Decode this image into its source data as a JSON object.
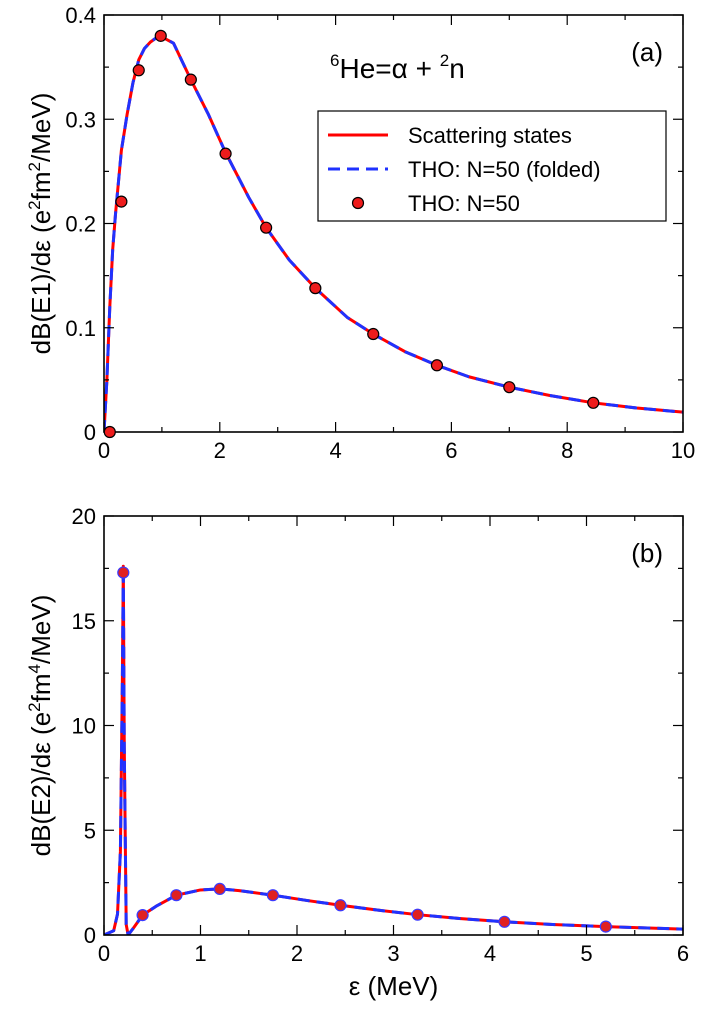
{
  "colors": {
    "scattering": "#ff0000",
    "folded": "#1f32ff",
    "marker_fill": "#ee1c1c",
    "marker_fill_b": "#e02020",
    "marker_edge": "#3a3aff"
  },
  "chart_data": [
    {
      "type": "line",
      "panel_label": "(a)",
      "annotation": {
        "sup1": "6",
        "base1": "He=α + ",
        "sup2": "2",
        "base2": "n"
      },
      "ylabel_parts": {
        "pre": "dB(E1)/dε (e",
        "sup1": "2",
        "mid": "fm",
        "sup2": "2",
        "post": "/MeV)"
      },
      "xlim": [
        0,
        10
      ],
      "ylim": [
        0,
        0.4
      ],
      "xticks": [
        0,
        2,
        4,
        6,
        8,
        10
      ],
      "yticks": [
        0,
        0.1,
        0.2,
        0.3,
        0.4
      ],
      "ytick_labels": [
        "0",
        "0.1",
        "0.2",
        "0.3",
        "0.4"
      ],
      "legend": {
        "position": "top-right",
        "entries": [
          "Scattering states",
          "THO: N=50 (folded)",
          "THO: N=50"
        ]
      },
      "series": [
        {
          "name": "Scattering states",
          "style": "solid",
          "x": [
            0.0,
            0.05,
            0.1,
            0.15,
            0.2,
            0.3,
            0.4,
            0.5,
            0.6,
            0.7,
            0.8,
            0.9,
            1.0,
            1.2,
            1.5,
            1.8,
            2.1,
            2.5,
            2.8,
            3.2,
            3.65,
            4.2,
            4.65,
            5.2,
            5.75,
            6.3,
            7.0,
            7.7,
            8.45,
            9.2,
            10.0
          ],
          "y": [
            0.0,
            0.05,
            0.12,
            0.175,
            0.21,
            0.27,
            0.305,
            0.335,
            0.357,
            0.368,
            0.374,
            0.378,
            0.379,
            0.373,
            0.338,
            0.305,
            0.268,
            0.225,
            0.196,
            0.165,
            0.138,
            0.11,
            0.094,
            0.077,
            0.064,
            0.053,
            0.043,
            0.035,
            0.028,
            0.023,
            0.019
          ]
        },
        {
          "name": "THO: N=50 (folded)",
          "style": "dashed",
          "x": [
            0.0,
            0.05,
            0.1,
            0.15,
            0.2,
            0.3,
            0.4,
            0.5,
            0.6,
            0.7,
            0.8,
            0.9,
            1.0,
            1.2,
            1.5,
            1.8,
            2.1,
            2.5,
            2.8,
            3.2,
            3.65,
            4.2,
            4.65,
            5.2,
            5.75,
            6.3,
            7.0,
            7.7,
            8.45,
            9.2,
            10.0
          ],
          "y": [
            0.0,
            0.05,
            0.12,
            0.175,
            0.21,
            0.27,
            0.305,
            0.335,
            0.357,
            0.368,
            0.374,
            0.378,
            0.379,
            0.373,
            0.338,
            0.305,
            0.268,
            0.225,
            0.196,
            0.165,
            0.138,
            0.11,
            0.094,
            0.077,
            0.064,
            0.053,
            0.043,
            0.035,
            0.028,
            0.023,
            0.019
          ]
        },
        {
          "name": "THO: N=50",
          "style": "markers",
          "x": [
            0.1,
            0.3,
            0.6,
            0.98,
            1.5,
            2.1,
            2.8,
            3.65,
            4.65,
            5.75,
            7.0,
            8.45
          ],
          "y": [
            0.0,
            0.221,
            0.347,
            0.38,
            0.338,
            0.267,
            0.196,
            0.138,
            0.094,
            0.064,
            0.043,
            0.028
          ]
        }
      ]
    },
    {
      "type": "line",
      "panel_label": "(b)",
      "ylabel_parts": {
        "pre": "dB(E2)/dε (e",
        "sup1": "2",
        "mid": "fm",
        "sup2": "4",
        "post": "/MeV)"
      },
      "xlabel": "ε (MeV)",
      "xlim": [
        0,
        6
      ],
      "ylim": [
        0,
        20
      ],
      "xticks": [
        0,
        1,
        2,
        3,
        4,
        5,
        6
      ],
      "yticks": [
        0,
        5,
        10,
        15,
        20
      ],
      "ytick_labels": [
        "0",
        "5",
        "10",
        "15",
        "20"
      ],
      "series": [
        {
          "name": "Scattering states",
          "style": "solid",
          "x": [
            0.0,
            0.1,
            0.14,
            0.17,
            0.19,
            0.2,
            0.21,
            0.23,
            0.25,
            0.3,
            0.4,
            0.55,
            0.75,
            1.0,
            1.2,
            1.4,
            1.75,
            2.1,
            2.45,
            2.85,
            3.25,
            3.7,
            4.15,
            4.65,
            5.2,
            5.6,
            6.0
          ],
          "y": [
            0.0,
            0.2,
            1.0,
            4.0,
            12.0,
            17.6,
            9.0,
            0.5,
            0.0,
            0.3,
            0.95,
            1.4,
            1.9,
            2.15,
            2.2,
            2.12,
            1.9,
            1.65,
            1.42,
            1.18,
            0.97,
            0.78,
            0.63,
            0.5,
            0.4,
            0.34,
            0.28
          ]
        },
        {
          "name": "THO: N=50 (folded)",
          "style": "dashed",
          "x": [
            0.0,
            0.1,
            0.14,
            0.17,
            0.19,
            0.2,
            0.21,
            0.23,
            0.25,
            0.3,
            0.4,
            0.55,
            0.75,
            1.0,
            1.2,
            1.4,
            1.75,
            2.1,
            2.45,
            2.85,
            3.25,
            3.7,
            4.15,
            4.65,
            5.2,
            5.6,
            6.0
          ],
          "y": [
            0.0,
            0.2,
            1.0,
            4.0,
            12.0,
            17.6,
            9.0,
            0.5,
            0.0,
            0.3,
            0.95,
            1.4,
            1.9,
            2.15,
            2.2,
            2.12,
            1.9,
            1.65,
            1.42,
            1.18,
            0.97,
            0.78,
            0.63,
            0.5,
            0.4,
            0.34,
            0.28
          ]
        },
        {
          "name": "THO: N=50",
          "style": "markers",
          "x": [
            0.2,
            0.4,
            0.75,
            1.2,
            1.75,
            2.45,
            3.25,
            4.15,
            5.2
          ],
          "y": [
            17.3,
            0.95,
            1.9,
            2.2,
            1.9,
            1.42,
            0.97,
            0.63,
            0.4
          ]
        }
      ]
    }
  ]
}
